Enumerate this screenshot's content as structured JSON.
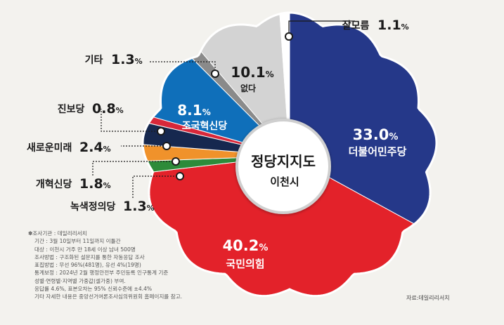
{
  "chart_data": {
    "type": "pie",
    "title": "정당지지도",
    "subtitle": "이천시",
    "slices": [
      {
        "name": "더불어민주당",
        "value": 33.0,
        "color": "#253889",
        "text_color": "#ffffff"
      },
      {
        "name": "국민의힘",
        "value": 40.2,
        "color": "#e3222a",
        "text_color": "#ffffff"
      },
      {
        "name": "녹색정의당",
        "value": 1.3,
        "color": "#2d8b3a"
      },
      {
        "name": "개혁신당",
        "value": 1.8,
        "color": "#f0922b"
      },
      {
        "name": "새로운미래",
        "value": 2.4,
        "color": "#16284f"
      },
      {
        "name": "진보당",
        "value": 0.8,
        "color": "#d8283a"
      },
      {
        "name": "조국혁신당",
        "value": 8.1,
        "color": "#0f6fba",
        "text_color": "#ffffff"
      },
      {
        "name": "기타",
        "value": 1.3,
        "color": "#8a8a8a"
      },
      {
        "name": "없다",
        "value": 10.1,
        "color": "#d3d3d3",
        "text_color": "#1a1a1a"
      },
      {
        "name": "잘모름",
        "value": 1.1,
        "color": "#ffffff"
      }
    ],
    "value_suffix": "%"
  },
  "labels": {
    "dem_value": "33.0",
    "ppp_value": "40.2",
    "rebuild_value": "8.1",
    "none_value": "10.1",
    "pct": "%"
  },
  "notes": [
    "✽조사기관 : 데일리리서치",
    "기간 : 3월 10일부터 11일까지 이틀간",
    "대상 : 이천시 거주 만 18세 이상 남녀 500명",
    "조사방법 : 구조화된 설문지를 통한 자동응답 조사",
    "표집방법 : 무선 96%(481명), 유선 4%(19명)",
    "통계보정 : 2024년 2월 행정안전부 주민등록 인구통계 기준",
    "성별·연령별·지역별 가중값(셀가중) 부여.",
    "응답률 4.6%, 표본오차는 95% 신뢰수준에 ±4.4%",
    "기타 자세한 내용은 중앙선거여론조사심의위원회 홈페이지를 참고."
  ],
  "source": "자료:데일리리서치"
}
